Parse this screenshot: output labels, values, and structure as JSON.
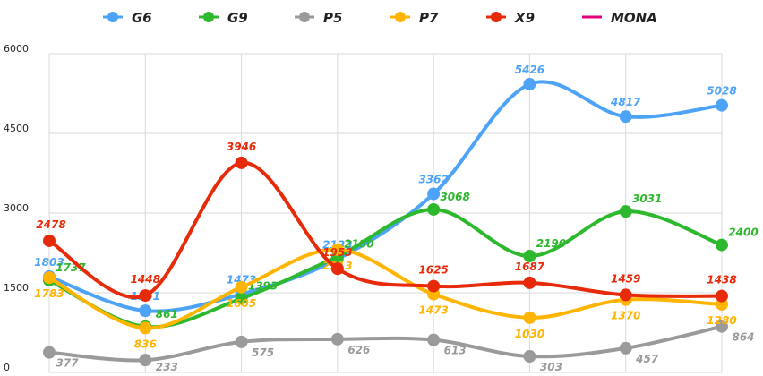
{
  "chart_data": {
    "type": "line",
    "title": "",
    "xlabel": "",
    "ylabel": "",
    "ylim": [
      0,
      6000
    ],
    "yticks": [
      0,
      1500,
      3000,
      4500,
      6000
    ],
    "grid": true,
    "legend": "top-center",
    "categories_count": 8,
    "series": [
      {
        "name": "G6",
        "color": "#4da3f5",
        "values": [
          1803,
          1161,
          1473,
          2133,
          3362,
          5426,
          4817,
          5028
        ]
      },
      {
        "name": "G9",
        "color": "#2db82d",
        "values": [
          1737,
          861,
          1393,
          2180,
          3068,
          2190,
          3031,
          2400
        ]
      },
      {
        "name": "P5",
        "color": "#9a9a9a",
        "values": [
          377,
          233,
          575,
          626,
          613,
          303,
          457,
          864
        ]
      },
      {
        "name": "P7",
        "color": "#ffb400",
        "values": [
          1783,
          836,
          1605,
          2313,
          1473,
          1030,
          1370,
          1280
        ]
      },
      {
        "name": "X9",
        "color": "#e62a0a",
        "values": [
          2478,
          1448,
          3946,
          1953,
          1625,
          1687,
          1459,
          1438
        ]
      },
      {
        "name": "MONA",
        "color": "#e0007a",
        "values": []
      }
    ]
  }
}
